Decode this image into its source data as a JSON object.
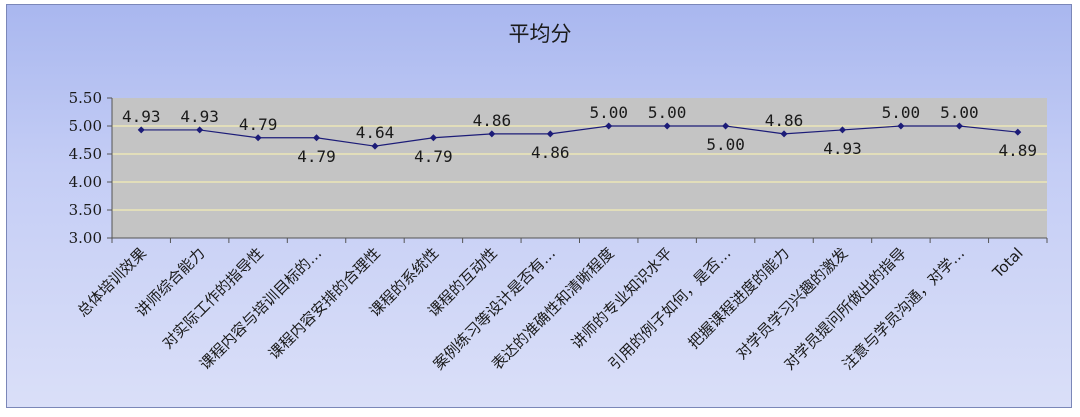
{
  "chart_data": {
    "type": "line",
    "title": "平均分",
    "categories": [
      "总体培训效果",
      "讲师综合能力",
      "对实际工作的指导性",
      "课程内容与培训目标的…",
      "课程内容安排的合理性",
      "课程的系统性",
      "课程的互动性",
      "案例练习等设计是否有…",
      "表达的准确性和清晰程度",
      "讲师的专业知识水平",
      "引用的例子如何，是否…",
      "把握课程进度的能力",
      "对学员学习兴趣的激发",
      "对学员提问所做出的指导",
      "注意与学员沟通，对学…",
      "Total"
    ],
    "values": [
      4.93,
      4.93,
      4.79,
      4.79,
      4.64,
      4.79,
      4.86,
      4.86,
      5.0,
      5.0,
      5.0,
      4.86,
      4.93,
      5.0,
      5.0,
      4.89
    ],
    "data_labels": [
      "4.93",
      "4.93",
      "4.79",
      "4.79",
      "4.64",
      "4.79",
      "4.86",
      "4.86",
      "5.00",
      "5.00",
      "5.00",
      "4.86",
      "4.93",
      "5.00",
      "5.00",
      "4.89"
    ],
    "label_positions": [
      "above",
      "above",
      "above",
      "below",
      "above",
      "below",
      "above",
      "below",
      "above",
      "above",
      "below",
      "above",
      "below",
      "above",
      "above",
      "below"
    ],
    "yticks": [
      "3.00",
      "3.50",
      "4.00",
      "4.50",
      "5.00",
      "5.50"
    ],
    "ylim": [
      3.0,
      5.5
    ],
    "xlabel": "",
    "ylabel": "",
    "grid": true,
    "colors": {
      "line": "#1c1c78",
      "marker": "#1c1c78",
      "plot_bg": "#c4c4c4",
      "gridline": "#fff7b0",
      "axis": "#555555"
    }
  }
}
